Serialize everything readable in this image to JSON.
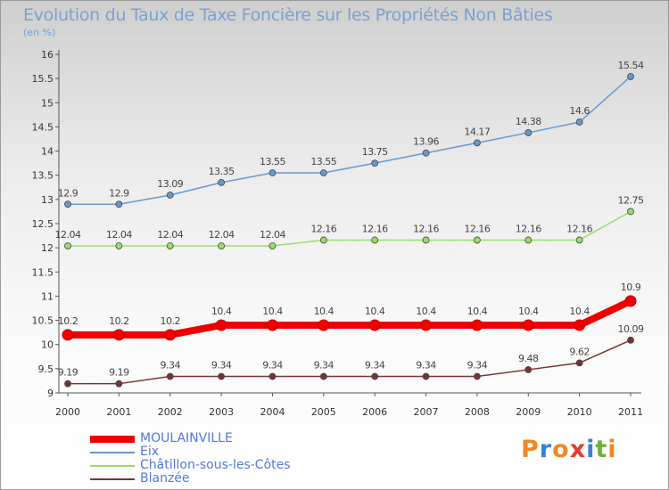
{
  "chart_data": {
    "type": "line",
    "title": "Evolution du Taux de Taxe Foncière sur les Propriétés Non Bâties",
    "subtitle": "(en %)",
    "categories": [
      "2000",
      "2001",
      "2002",
      "2003",
      "2004",
      "2005",
      "2006",
      "2007",
      "2008",
      "2009",
      "2010",
      "2011"
    ],
    "ylim": [
      9,
      16
    ],
    "yticks": [
      "9",
      "9.5",
      "10",
      "10.5",
      "11",
      "11.5",
      "12",
      "12.5",
      "13",
      "13.5",
      "14",
      "14.5",
      "15",
      "15.5",
      "16"
    ],
    "grid": false,
    "legend_position": "bottom-left",
    "series": [
      {
        "name": "MOULAINVILLE",
        "color": "#ee0000",
        "width": 8,
        "values": [
          10.2,
          10.2,
          10.2,
          10.4,
          10.4,
          10.4,
          10.4,
          10.4,
          10.4,
          10.4,
          10.4,
          10.9
        ],
        "labels": [
          "10.2",
          "10.2",
          "10.2",
          "10.4",
          "10.4",
          "10.4",
          "10.4",
          "10.4",
          "10.4",
          "10.4",
          "10.4",
          "10.9"
        ],
        "label_offset": "above"
      },
      {
        "name": "Eix",
        "color": "#6699cc",
        "width": 1.5,
        "values": [
          12.9,
          12.9,
          13.09,
          13.35,
          13.55,
          13.55,
          13.75,
          13.96,
          14.17,
          14.38,
          14.6,
          15.54
        ],
        "labels": [
          "12.9",
          "12.9",
          "13.09",
          "13.35",
          "13.55",
          "13.55",
          "13.75",
          "13.96",
          "14.17",
          "14.38",
          "14.6",
          "15.54"
        ],
        "label_offset": "above"
      },
      {
        "name": "Châtillon-sous-les-Côtes",
        "color": "#99dd66",
        "width": 1.5,
        "values": [
          12.04,
          12.04,
          12.04,
          12.04,
          12.04,
          12.16,
          12.16,
          12.16,
          12.16,
          12.16,
          12.16,
          12.75
        ],
        "labels": [
          "12.04",
          "12.04",
          "12.04",
          "12.04",
          "12.04",
          "12.16",
          "12.16",
          "12.16",
          "12.16",
          "12.16",
          "12.16",
          "12.75"
        ],
        "label_offset": "above"
      },
      {
        "name": "Blanzée",
        "color": "#773333",
        "width": 1.5,
        "values": [
          9.19,
          9.19,
          9.34,
          9.34,
          9.34,
          9.34,
          9.34,
          9.34,
          9.34,
          9.48,
          9.62,
          10.09
        ],
        "labels": [
          "9.19",
          "9.19",
          "9.34",
          "9.34",
          "9.34",
          "9.34",
          "9.34",
          "9.34",
          "9.34",
          "9.48",
          "9.62",
          "10.09"
        ],
        "label_offset": "above"
      }
    ]
  },
  "logo": {
    "text": "Proxiti",
    "colors": [
      "#f08a24",
      "#3a7fd6",
      "#f08a24",
      "#e83a2e",
      "#3a7fd6",
      "#6ab23a",
      "#f08a24"
    ]
  }
}
